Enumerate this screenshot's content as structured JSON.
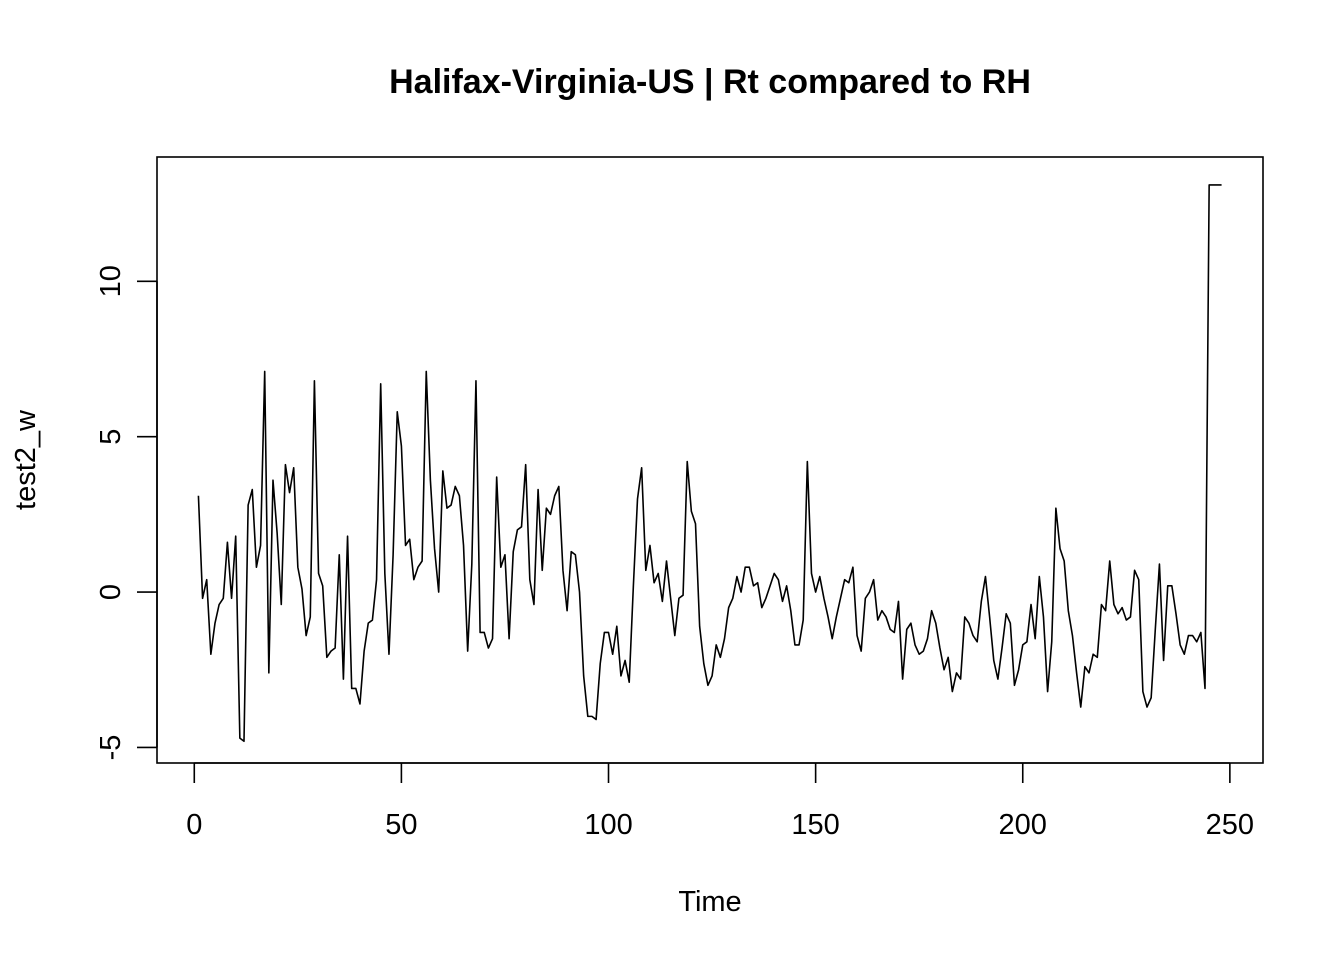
{
  "chart_data": {
    "type": "line",
    "title": "Halifax-Virginia-US | Rt compared to RH",
    "xlabel": "Time",
    "ylabel": "test2_w",
    "xlim": [
      -9,
      258
    ],
    "ylim": [
      -5.5,
      14
    ],
    "x_ticks": [
      0,
      50,
      100,
      150,
      200,
      250
    ],
    "y_ticks": [
      -5,
      0,
      5,
      10
    ],
    "grid": false,
    "legend": "none",
    "line_color": "#000000",
    "series": [
      {
        "x_start": 1,
        "values": [
          3.1,
          -0.2,
          0.4,
          -2.0,
          -1.0,
          -0.4,
          -0.2,
          1.6,
          -0.2,
          1.8,
          -4.7,
          -4.8,
          2.8,
          3.3,
          0.8,
          1.5,
          7.1,
          -2.6,
          3.6,
          1.9,
          -0.4,
          4.1,
          3.2,
          4.0,
          0.8,
          0.1,
          -1.4,
          -0.8,
          6.8,
          0.6,
          0.2,
          -2.1,
          -1.9,
          -1.8,
          1.2,
          -2.8,
          1.8,
          -3.1,
          -3.1,
          -3.6,
          -1.9,
          -1.0,
          -0.9,
          0.4,
          6.7,
          0.6,
          -2.0,
          1.2,
          5.8,
          4.7,
          1.5,
          1.7,
          0.4,
          0.8,
          1.0,
          7.1,
          3.6,
          1.4,
          0.0,
          3.9,
          2.7,
          2.8,
          3.4,
          3.1,
          1.5,
          -1.9,
          0.9,
          6.8,
          -1.3,
          -1.3,
          -1.8,
          -1.5,
          3.7,
          0.8,
          1.2,
          -1.5,
          1.3,
          2.0,
          2.1,
          4.1,
          0.4,
          -0.4,
          3.3,
          0.7,
          2.7,
          2.5,
          3.1,
          3.4,
          0.7,
          -0.6,
          1.3,
          1.2,
          0.0,
          -2.7,
          -4.0,
          -4.0,
          -4.1,
          -2.3,
          -1.3,
          -1.3,
          -2.0,
          -1.1,
          -2.7,
          -2.2,
          -2.9,
          0.2,
          3.0,
          4.0,
          0.7,
          1.5,
          0.3,
          0.6,
          -0.3,
          1.0,
          -0.2,
          -1.4,
          -0.2,
          -0.1,
          4.2,
          2.6,
          2.2,
          -1.1,
          -2.3,
          -3.0,
          -2.7,
          -1.7,
          -2.1,
          -1.5,
          -0.5,
          -0.2,
          0.5,
          0.0,
          0.8,
          0.8,
          0.2,
          0.3,
          -0.5,
          -0.2,
          0.2,
          0.6,
          0.4,
          -0.3,
          0.2,
          -0.6,
          -1.7,
          -1.7,
          -0.9,
          4.2,
          0.6,
          0.0,
          0.5,
          -0.2,
          -0.8,
          -1.5,
          -0.8,
          -0.2,
          0.4,
          0.3,
          0.8,
          -1.4,
          -1.9,
          -0.2,
          0.0,
          0.4,
          -0.9,
          -0.6,
          -0.8,
          -1.2,
          -1.3,
          -0.3,
          -2.8,
          -1.2,
          -1.0,
          -1.7,
          -2.0,
          -1.9,
          -1.5,
          -0.6,
          -1.0,
          -1.8,
          -2.5,
          -2.1,
          -3.2,
          -2.6,
          -2.8,
          -0.8,
          -1.0,
          -1.4,
          -1.6,
          -0.3,
          0.5,
          -0.8,
          -2.2,
          -2.8,
          -1.8,
          -0.7,
          -1.0,
          -3.0,
          -2.5,
          -1.7,
          -1.6,
          -0.4,
          -1.5,
          0.5,
          -0.8,
          -3.2,
          -1.6,
          2.7,
          1.4,
          1.0,
          -0.6,
          -1.4,
          -2.6,
          -3.7,
          -2.4,
          -2.6,
          -2.0,
          -2.1,
          -0.4,
          -0.6,
          1.0,
          -0.4,
          -0.7,
          -0.5,
          -0.9,
          -0.8,
          0.7,
          0.4,
          -3.2,
          -3.7,
          -3.4,
          -1.2,
          0.9,
          -2.2,
          0.2,
          0.2,
          -0.7,
          -1.7,
          -2.0,
          -1.4,
          -1.4,
          -1.6,
          -1.3,
          -3.1,
          13.1,
          13.1,
          13.1,
          13.1
        ]
      }
    ]
  }
}
